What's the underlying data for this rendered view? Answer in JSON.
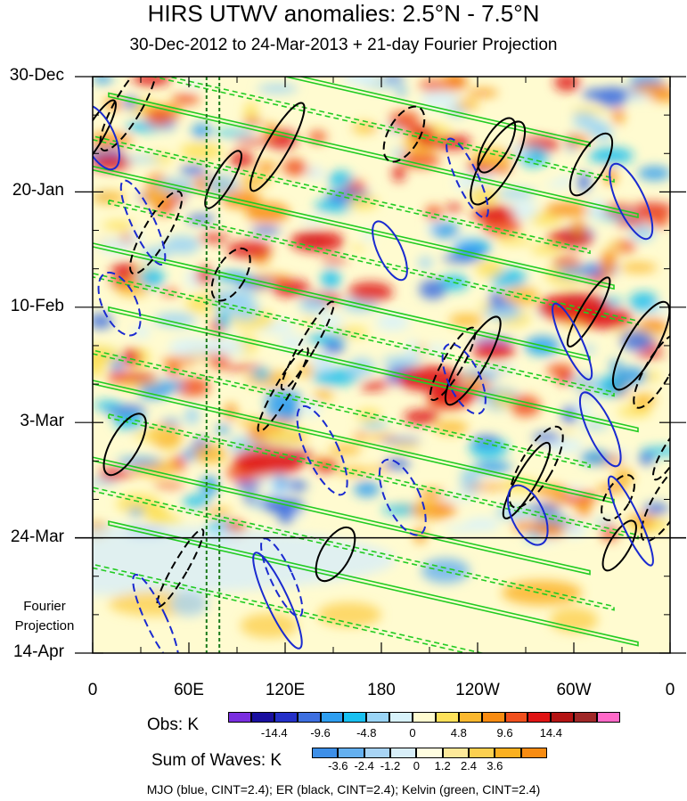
{
  "chart_data": {
    "type": "heatmap",
    "title": "HIRS UTWV anomalies: 2.5°N - 7.5°N",
    "subtitle": "30-Dec-2012 to 24-Mar-2013 + 21-day Fourier Projection",
    "x_ticks": [
      "0",
      "60E",
      "120E",
      "180",
      "120W",
      "60W",
      "0"
    ],
    "x_tick_lon": [
      0,
      60,
      120,
      180,
      240,
      300,
      360
    ],
    "y_ticks": [
      "30-Dec",
      "20-Jan",
      "10-Feb",
      "3-Mar",
      "24-Mar",
      "14-Apr"
    ],
    "y_tick_day": [
      0,
      21,
      42,
      63,
      84,
      105
    ],
    "observation_end_label": "24-Mar",
    "projection_label_line1": "Fourier",
    "projection_label_line2": "Projection",
    "obs_colorbar": {
      "title": "Obs: K",
      "colors": [
        "#7a2ee0",
        "#1a0fa0",
        "#2430c8",
        "#3d6fe0",
        "#2e9ef0",
        "#18c0f0",
        "#9ad4f5",
        "#d8f2fa",
        "#fffbd0",
        "#fde15a",
        "#fbb82e",
        "#f88c12",
        "#f0501e",
        "#e01414",
        "#b41414",
        "#a02828",
        "#ff69c8"
      ],
      "tick_labels": [
        "-14.4",
        "-9.6",
        "-4.8",
        "0",
        "4.8",
        "9.6",
        "14.4"
      ]
    },
    "waves_colorbar": {
      "title": "Sum of Waves: K",
      "colors": [
        "#3d8fe8",
        "#64b0f0",
        "#a8d4f5",
        "#d8eef8",
        "#fffde0",
        "#fde99a",
        "#fcd050",
        "#fbb020",
        "#f88c12"
      ],
      "tick_labels": [
        "-3.6",
        "-2.4",
        "-1.2",
        "0",
        "1.2",
        "2.4",
        "3.6"
      ]
    },
    "contour_note": "MJO (blue, CINT=2.4); ER (black, CINT=2.4); Kelvin (green, CINT=2.4)",
    "wave_colors": {
      "MJO": "#1a2ad0",
      "ER": "#000000",
      "Kelvin": "#22cc22"
    },
    "dashed_lon_lines": [
      71,
      79
    ]
  }
}
